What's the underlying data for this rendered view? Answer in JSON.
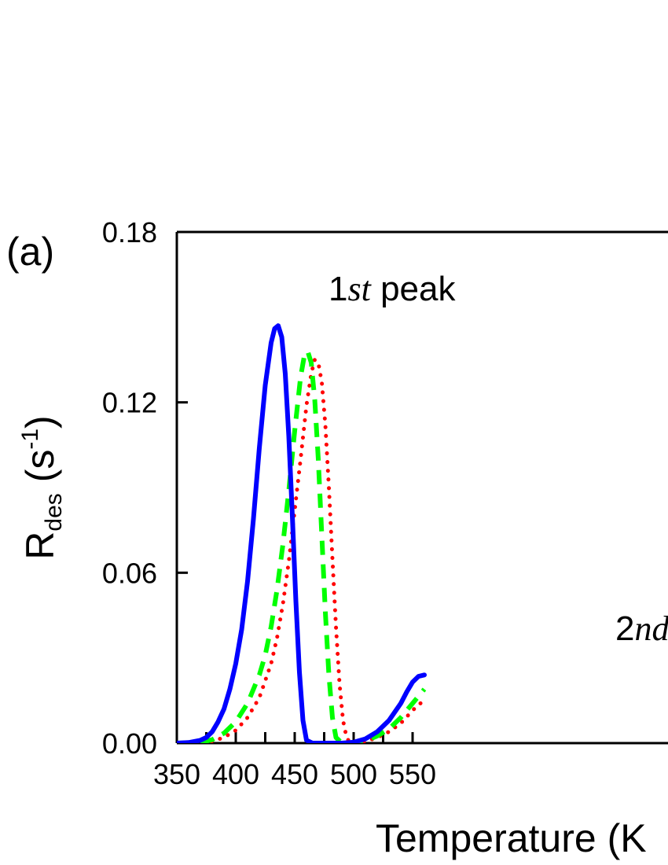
{
  "panel_label": "(a)",
  "annotations": {
    "peak1": {
      "prefix": "1",
      "ordinal": "st",
      "suffix": " peak"
    },
    "peak2": {
      "prefix": "2",
      "ordinal": "nd"
    }
  },
  "axes": {
    "xlabel": "Temperature (K",
    "ylabel_main": "R",
    "ylabel_sub": "des",
    "ylabel_unit_open": " (s",
    "ylabel_unit_sup": "-1",
    "ylabel_unit_close": ")"
  },
  "chart_data": {
    "type": "line",
    "title": "",
    "xlabel": "Temperature (K",
    "ylabel": "R des (s-1)",
    "xlim": [
      350,
      560
    ],
    "ylim": [
      0,
      0.18
    ],
    "xticks": [
      350,
      400,
      450,
      500,
      550
    ],
    "xtick_labels": [
      "350",
      "400",
      "450",
      "500",
      "550"
    ],
    "yticks": [
      0,
      0.06,
      0.12,
      0.18
    ],
    "ytick_labels": [
      "0.00",
      "0.06",
      "0.12",
      "0.18"
    ],
    "grid": false,
    "series": [
      {
        "style": "solid",
        "color": "#0000ff",
        "x": [
          350,
          360,
          370,
          375,
          380,
          385,
          390,
          395,
          400,
          405,
          410,
          415,
          420,
          425,
          430,
          433,
          436,
          439,
          442,
          445,
          448,
          451,
          454,
          457,
          460,
          465,
          470,
          480,
          490,
          500,
          510,
          520,
          530,
          540,
          545,
          550,
          555,
          560
        ],
        "y": [
          0,
          0.0002,
          0.001,
          0.002,
          0.004,
          0.0075,
          0.012,
          0.019,
          0.028,
          0.04,
          0.057,
          0.079,
          0.104,
          0.126,
          0.141,
          0.146,
          0.147,
          0.143,
          0.13,
          0.108,
          0.08,
          0.05,
          0.025,
          0.008,
          0.001,
          0,
          0,
          0,
          0,
          0.0003,
          0.0015,
          0.004,
          0.008,
          0.014,
          0.018,
          0.0215,
          0.0235,
          0.024
        ]
      },
      {
        "style": "dashed",
        "color": "#00ff00",
        "x": [
          350,
          370,
          380,
          390,
          400,
          410,
          420,
          425,
          430,
          435,
          440,
          445,
          450,
          455,
          458,
          461,
          464,
          467,
          470,
          473,
          476,
          479,
          482,
          485,
          490,
          500,
          510,
          520,
          530,
          540,
          550,
          555,
          560
        ],
        "y": [
          0,
          0.0002,
          0.0012,
          0.0035,
          0.0075,
          0.014,
          0.024,
          0.031,
          0.041,
          0.054,
          0.07,
          0.089,
          0.11,
          0.129,
          0.136,
          0.138,
          0.134,
          0.121,
          0.1,
          0.073,
          0.046,
          0.024,
          0.009,
          0.002,
          0,
          0,
          0.0008,
          0.0025,
          0.005,
          0.009,
          0.014,
          0.0165,
          0.019
        ]
      },
      {
        "style": "dotted",
        "color": "#ff0000",
        "x": [
          350,
          370,
          380,
          390,
          400,
          410,
          420,
          430,
          435,
          440,
          445,
          450,
          455,
          460,
          464,
          467,
          470,
          473,
          476,
          479,
          482,
          485,
          488,
          491,
          494,
          497,
          500,
          510,
          520,
          530,
          540,
          550,
          555,
          560
        ],
        "y": [
          0,
          0.0001,
          0.0006,
          0.002,
          0.0045,
          0.009,
          0.016,
          0.028,
          0.037,
          0.049,
          0.064,
          0.082,
          0.1,
          0.119,
          0.13,
          0.135,
          0.134,
          0.127,
          0.112,
          0.09,
          0.065,
          0.041,
          0.021,
          0.008,
          0.002,
          0,
          0,
          0.0005,
          0.002,
          0.004,
          0.007,
          0.0115,
          0.0135,
          0.015
        ]
      }
    ]
  }
}
